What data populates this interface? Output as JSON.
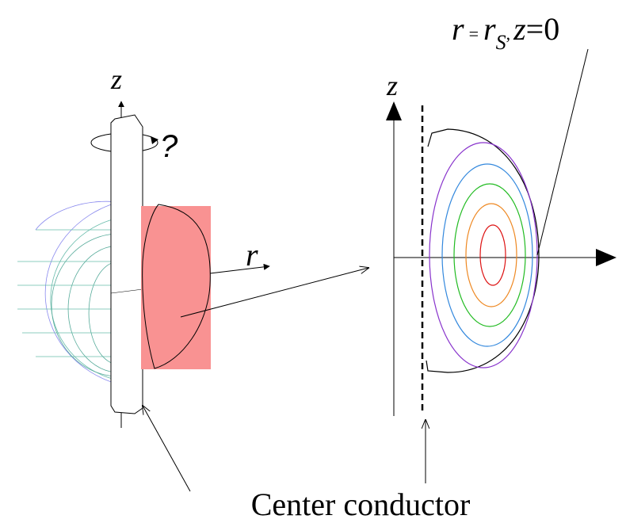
{
  "labels": {
    "left_z": "z",
    "rotation": "?",
    "radial": "r",
    "right_z": "z",
    "point": [
      "r",
      "=",
      "r",
      "S",
      ",",
      "z",
      "=0"
    ],
    "caption": "Center conductor"
  }
}
